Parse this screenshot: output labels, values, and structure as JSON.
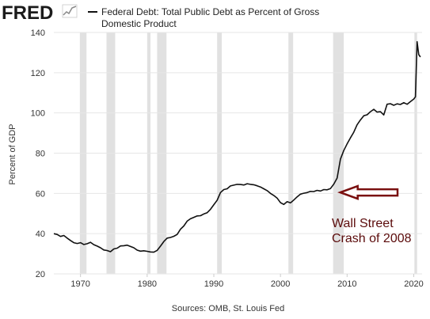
{
  "logo": {
    "text": "FRED"
  },
  "chart_data": {
    "type": "line",
    "title": "Federal Debt: Total Public Debt as Percent of Gross Domestic Product",
    "title_lines": [
      "Federal Debt: Total Public Debt as Percent of Gross",
      "Domestic Product"
    ],
    "xlabel": "",
    "ylabel": "Percent of GDP",
    "xlim": [
      1966,
      2021.25
    ],
    "ylim": [
      20,
      140
    ],
    "x_ticks": [
      1970,
      1980,
      1990,
      2000,
      2010,
      2020
    ],
    "y_ticks": [
      20,
      40,
      60,
      80,
      100,
      120,
      140
    ],
    "grid": "horizontal",
    "legend": "top",
    "colors": {
      "line": "#111111",
      "recession": "#e1e1e1",
      "grid": "#e6e6e6",
      "arrow_fill": "#ffffff",
      "arrow_stroke": "#7a1010",
      "annotation": "#5b0b0b"
    },
    "recessions": [
      [
        1969.9,
        1970.9
      ],
      [
        1973.9,
        1975.2
      ],
      [
        1980.0,
        1980.5
      ],
      [
        1981.5,
        1982.9
      ],
      [
        1990.5,
        1991.2
      ],
      [
        2001.2,
        2001.9
      ],
      [
        2007.9,
        2009.5
      ],
      [
        2020.1,
        2020.5
      ]
    ],
    "series": [
      {
        "name": "Federal Debt: Total Public Debt as Percent of Gross Domestic Product",
        "x": [
          1966.0,
          1966.5,
          1967.0,
          1967.5,
          1968.0,
          1968.5,
          1969.0,
          1969.5,
          1970.0,
          1970.5,
          1971.0,
          1971.5,
          1972.0,
          1972.5,
          1973.0,
          1973.5,
          1974.0,
          1974.5,
          1975.0,
          1975.5,
          1976.0,
          1976.5,
          1977.0,
          1977.5,
          1978.0,
          1978.5,
          1979.0,
          1979.5,
          1980.0,
          1980.5,
          1981.0,
          1981.5,
          1982.0,
          1982.5,
          1983.0,
          1983.5,
          1984.0,
          1984.5,
          1985.0,
          1985.5,
          1986.0,
          1986.5,
          1987.0,
          1987.5,
          1988.0,
          1988.5,
          1989.0,
          1989.5,
          1990.0,
          1990.5,
          1991.0,
          1991.5,
          1992.0,
          1992.5,
          1993.0,
          1993.5,
          1994.0,
          1994.5,
          1995.0,
          1995.5,
          1996.0,
          1996.5,
          1997.0,
          1997.5,
          1998.0,
          1998.5,
          1999.0,
          1999.5,
          2000.0,
          2000.5,
          2001.0,
          2001.5,
          2002.0,
          2002.5,
          2003.0,
          2003.5,
          2004.0,
          2004.5,
          2005.0,
          2005.5,
          2006.0,
          2006.5,
          2007.0,
          2007.5,
          2008.0,
          2008.5,
          2009.0,
          2009.5,
          2010.0,
          2010.5,
          2011.0,
          2011.5,
          2012.0,
          2012.5,
          2013.0,
          2013.5,
          2014.0,
          2014.5,
          2015.0,
          2015.5,
          2016.0,
          2016.5,
          2017.0,
          2017.5,
          2018.0,
          2018.5,
          2019.0,
          2019.5,
          2020.0,
          2020.25,
          2020.5,
          2020.75,
          2021.0
        ],
        "values": [
          40.0,
          39.6,
          38.6,
          39.1,
          37.8,
          36.6,
          35.5,
          35.1,
          35.5,
          34.6,
          35.0,
          35.7,
          34.5,
          33.8,
          33.0,
          31.9,
          31.6,
          31.0,
          32.4,
          32.8,
          33.9,
          34.0,
          34.3,
          33.6,
          33.0,
          31.8,
          31.3,
          31.5,
          31.2,
          30.9,
          30.8,
          31.7,
          33.8,
          36.1,
          37.8,
          38.1,
          38.7,
          39.6,
          42.2,
          43.8,
          46.2,
          47.4,
          48.1,
          48.8,
          48.9,
          49.8,
          50.4,
          52.1,
          54.4,
          56.6,
          60.4,
          61.9,
          62.3,
          63.7,
          64.1,
          64.5,
          64.4,
          64.2,
          64.8,
          64.5,
          64.3,
          63.8,
          63.2,
          62.3,
          61.4,
          60.0,
          59.0,
          57.7,
          55.4,
          54.5,
          55.9,
          55.3,
          56.7,
          58.3,
          59.6,
          60.1,
          60.4,
          61.0,
          60.9,
          61.5,
          61.2,
          61.9,
          61.8,
          62.4,
          64.6,
          67.6,
          77.0,
          81.3,
          84.6,
          87.6,
          90.4,
          94.1,
          96.5,
          98.6,
          99.1,
          100.6,
          101.8,
          100.4,
          100.6,
          99.0,
          104.3,
          104.6,
          103.8,
          104.5,
          104.2,
          105.1,
          104.3,
          105.6,
          106.9,
          108.0,
          135.4,
          129.0,
          127.8
        ]
      }
    ],
    "annotations": [
      {
        "text_lines": [
          "Wall Street",
          "Crash of 2008"
        ],
        "points_to_x": 2008.5,
        "points_to_y": 60.5
      }
    ],
    "source": "Sources: OMB, St. Louis Fed"
  }
}
